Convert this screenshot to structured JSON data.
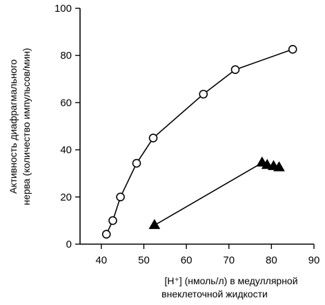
{
  "chart_data": {
    "type": "scatter",
    "xlabel_lines": [
      "[H⁺] (нмоль/л) в медуллярной",
      "внеклеточной жидкости"
    ],
    "ylabel_lines": [
      "Активность диафрагмального",
      "нерва (количество импульсов/мин)"
    ],
    "xlim": [
      35,
      90
    ],
    "ylim": [
      0,
      100
    ],
    "x_ticks": [
      40,
      50,
      60,
      70,
      80,
      90
    ],
    "y_ticks": [
      0,
      20,
      40,
      60,
      80,
      100
    ],
    "grid": false,
    "series": [
      {
        "marker": "circle-open",
        "connected": true,
        "x": [
          41.2,
          42.7,
          44.5,
          48.3,
          52.2,
          64.0,
          71.5,
          85.0
        ],
        "y": [
          4.2,
          10.0,
          20.0,
          34.3,
          45.0,
          63.6,
          74.0,
          82.6
        ]
      },
      {
        "marker": "triangle-filled",
        "connected": true,
        "x": [
          52.5,
          77.8,
          79.0,
          80.5,
          81.8
        ],
        "y": [
          8.0,
          34.5,
          33.5,
          33.0,
          32.5
        ]
      }
    ]
  }
}
